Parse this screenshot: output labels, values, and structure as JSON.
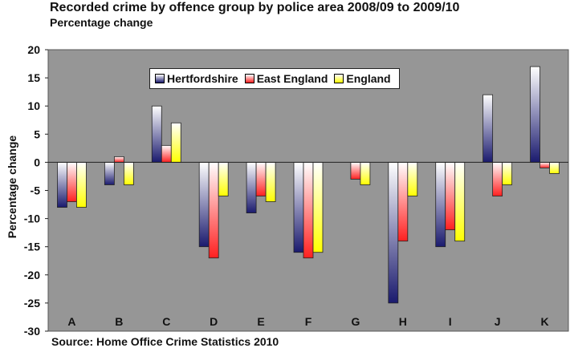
{
  "chart_data": {
    "type": "bar",
    "title": "Recorded crime by offence group by police area 2008/09 to 2009/10",
    "subtitle": "Percentage change",
    "ylabel": "Percentage change",
    "xlabel": "",
    "source": "Source: Home Office Crime Statistics 2010",
    "ylim": [
      -30,
      20
    ],
    "yticks": [
      20,
      15,
      10,
      5,
      0,
      -5,
      -10,
      -15,
      -20,
      -25,
      -30
    ],
    "categories": [
      "A",
      "B",
      "C",
      "D",
      "E",
      "F",
      "G",
      "H",
      "I",
      "J",
      "K"
    ],
    "series": [
      {
        "name": "Hertfordshire",
        "color": "#1a1a6e",
        "values": [
          -8,
          -4,
          10,
          -15,
          -9,
          -16,
          0,
          -25,
          -15,
          12,
          17
        ]
      },
      {
        "name": "East England",
        "color": "#ff2020",
        "values": [
          -7,
          1,
          3,
          -17,
          -6,
          -17,
          -3,
          -14,
          -12,
          -6,
          -1
        ]
      },
      {
        "name": "England",
        "color": "#ffff00",
        "values": [
          -8,
          -4,
          7,
          -6,
          -7,
          -16,
          -4,
          -6,
          -14,
          -4,
          -2
        ]
      }
    ],
    "plot_background": "#969696",
    "grid": false,
    "legend_position": "top-center"
  }
}
